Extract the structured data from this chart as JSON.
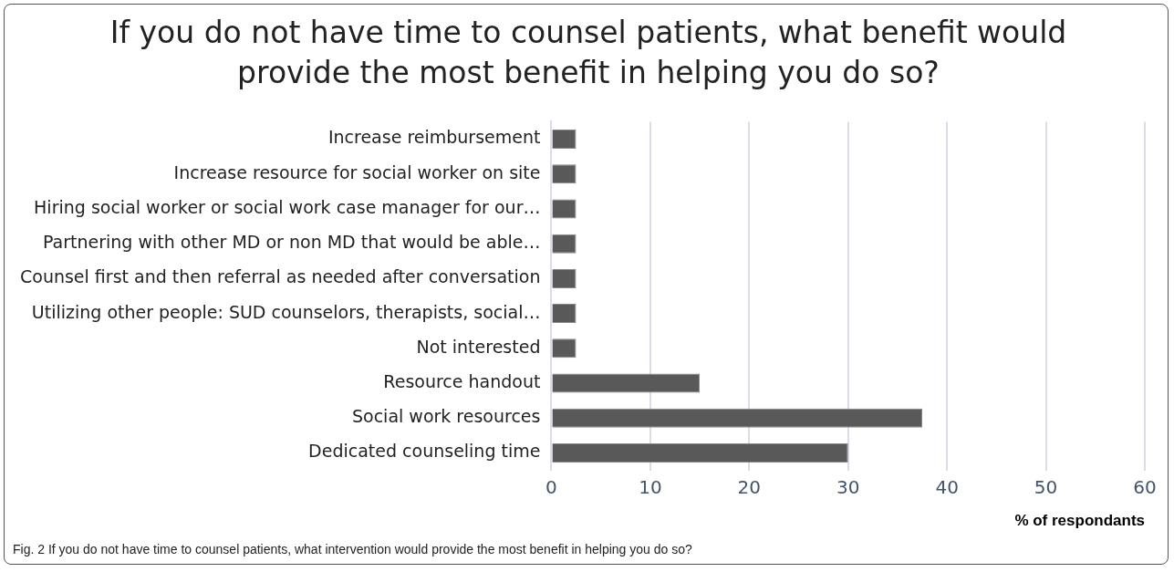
{
  "chart_data": {
    "type": "bar",
    "orientation": "horizontal",
    "title": "If you do not have time to counsel patients, what benefit would provide the most benefit in helping you do so?",
    "categories": [
      "Increase reimbursement",
      "Increase resource for social worker on site",
      "Hiring social worker or social work case manager for our…",
      "Partnering with other MD or non MD that would be able…",
      "Counsel first and then referral as needed after conversation",
      "Utilizing other people: SUD counselors, therapists, social…",
      "Not interested",
      "Resource handout",
      "Social work resources",
      "Dedicated counseling time"
    ],
    "values": [
      2.5,
      2.5,
      2.5,
      2.5,
      2.5,
      2.5,
      2.5,
      15,
      37.5,
      30
    ],
    "color": "#595959",
    "xlim": [
      0,
      60
    ],
    "xticks": [
      0,
      10,
      20,
      30,
      40,
      50,
      60
    ],
    "xlabel": "% of respondants",
    "grid": "x",
    "legend": false,
    "annotations": [
      "Fig. 2  If you do not have time to counsel patients, what intervention would provide the most benefit in helping you do so?"
    ]
  }
}
